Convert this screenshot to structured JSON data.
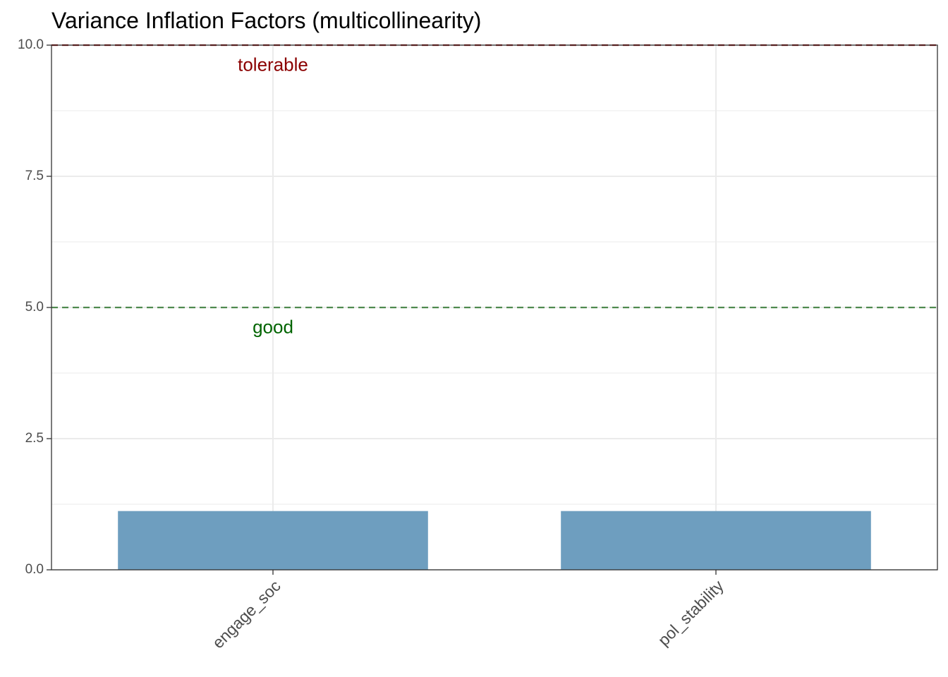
{
  "chart_data": {
    "type": "bar",
    "title": "Variance Inflation Factors (multicollinearity)",
    "xlabel": "",
    "ylabel": "",
    "categories": [
      "engage_soc",
      "pol_stability"
    ],
    "values": [
      1.12,
      1.12
    ],
    "ylim": [
      0,
      10
    ],
    "yticks": [
      "0.0",
      "2.5",
      "5.0",
      "7.5",
      "10.0"
    ],
    "grid": true,
    "bar_color": "#6e9ebf",
    "reference_lines": [
      {
        "y": 5,
        "color": "#4f8a4f",
        "style": "dashed"
      },
      {
        "y": 10,
        "color": "#8b0000",
        "style": "dashed"
      }
    ],
    "annotations": [
      {
        "text": "good",
        "x": "engage_soc",
        "y": 4.6,
        "color": "#006400"
      },
      {
        "text": "tolerable",
        "x": "engage_soc",
        "y": 9.6,
        "color": "#8b0000"
      }
    ]
  }
}
